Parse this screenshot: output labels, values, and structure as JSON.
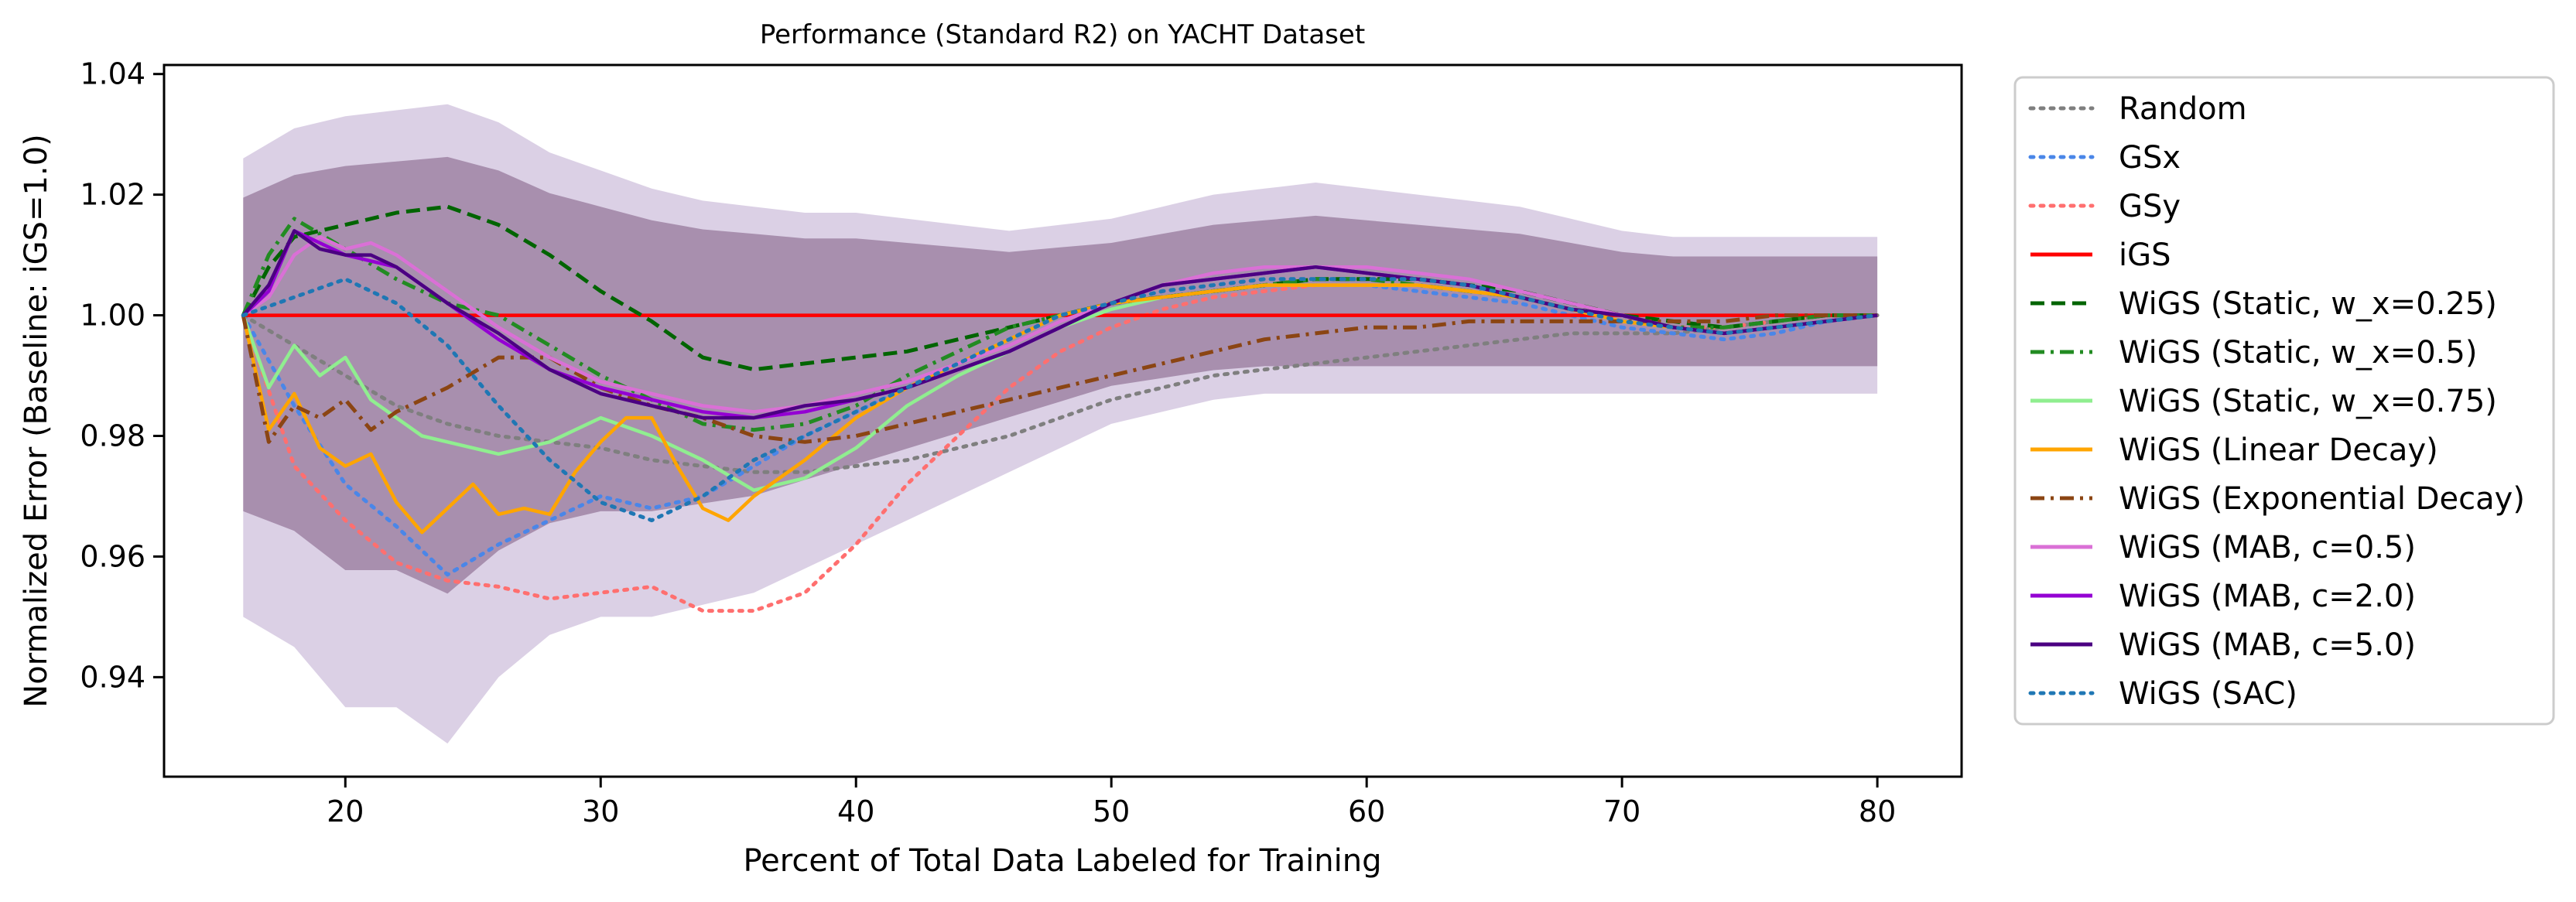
{
  "chart_data": {
    "type": "line",
    "title": "Performance (Standard R2) on YACHT Dataset",
    "xlabel": "Percent of Total Data Labeled for Training",
    "ylabel": "Normalized Error (Baseline: iGS=1.0)",
    "xlim": [
      12.9,
      83.3
    ],
    "ylim": [
      0.9235,
      1.0415
    ],
    "xticks": [
      20,
      30,
      40,
      50,
      60,
      70,
      80
    ],
    "xtick_labels": [
      "20",
      "30",
      "40",
      "50",
      "60",
      "70",
      "80"
    ],
    "yticks": [
      0.94,
      0.96,
      0.98,
      1.0,
      1.02,
      1.04
    ],
    "ytick_labels": [
      "0.94",
      "0.96",
      "0.98",
      "1.00",
      "1.02",
      "1.04"
    ],
    "grid": false,
    "legend_position": "outside-right-top",
    "band": {
      "note_color": "#b3a0c8",
      "x": [
        16,
        18,
        20,
        22,
        24,
        26,
        28,
        30,
        32,
        34,
        36,
        38,
        40,
        42,
        44,
        46,
        48,
        50,
        52,
        54,
        56,
        58,
        60,
        62,
        64,
        66,
        68,
        70,
        72,
        74,
        76,
        78,
        80
      ],
      "upper": [
        1.026,
        1.031,
        1.033,
        1.034,
        1.035,
        1.032,
        1.027,
        1.024,
        1.021,
        1.019,
        1.018,
        1.017,
        1.017,
        1.016,
        1.015,
        1.014,
        1.015,
        1.016,
        1.018,
        1.02,
        1.021,
        1.022,
        1.021,
        1.02,
        1.019,
        1.018,
        1.016,
        1.014,
        1.013,
        1.013,
        1.013,
        1.013,
        1.013
      ],
      "lower": [
        0.95,
        0.945,
        0.935,
        0.935,
        0.929,
        0.94,
        0.947,
        0.95,
        0.95,
        0.952,
        0.954,
        0.958,
        0.962,
        0.966,
        0.97,
        0.974,
        0.978,
        0.982,
        0.984,
        0.986,
        0.987,
        0.987,
        0.987,
        0.987,
        0.987,
        0.987,
        0.987,
        0.987,
        0.987,
        0.987,
        0.987,
        0.987,
        0.987
      ]
    },
    "series": [
      {
        "name": "Random",
        "color": "#7f7f7f",
        "style": "dotted",
        "x": [
          16,
          18,
          20,
          22,
          24,
          26,
          28,
          30,
          32,
          34,
          36,
          38,
          40,
          42,
          44,
          46,
          48,
          50,
          52,
          54,
          56,
          58,
          60,
          62,
          64,
          66,
          68,
          70,
          72,
          74,
          76,
          78,
          80
        ],
        "values": [
          1.0,
          0.995,
          0.99,
          0.985,
          0.982,
          0.98,
          0.979,
          0.978,
          0.976,
          0.975,
          0.974,
          0.974,
          0.975,
          0.976,
          0.978,
          0.98,
          0.983,
          0.986,
          0.988,
          0.99,
          0.991,
          0.992,
          0.993,
          0.994,
          0.995,
          0.996,
          0.997,
          0.997,
          0.997,
          0.998,
          0.999,
          1.0,
          1.0
        ]
      },
      {
        "name": "GSx",
        "color": "#4a86e8",
        "style": "dotted",
        "x": [
          16,
          18,
          20,
          22,
          24,
          26,
          28,
          30,
          32,
          34,
          36,
          38,
          40,
          42,
          44,
          46,
          48,
          50,
          52,
          54,
          56,
          58,
          60,
          62,
          64,
          66,
          68,
          70,
          72,
          74,
          76,
          78,
          80
        ],
        "values": [
          1.0,
          0.985,
          0.972,
          0.965,
          0.957,
          0.962,
          0.966,
          0.97,
          0.968,
          0.97,
          0.975,
          0.98,
          0.984,
          0.988,
          0.992,
          0.996,
          1.0,
          1.002,
          1.003,
          1.004,
          1.005,
          1.005,
          1.005,
          1.004,
          1.003,
          1.002,
          1.0,
          0.998,
          0.997,
          0.996,
          0.997,
          0.999,
          1.0
        ]
      },
      {
        "name": "GSy",
        "color": "#ff6f6f",
        "style": "dotted",
        "x": [
          16,
          18,
          20,
          22,
          24,
          26,
          28,
          30,
          32,
          34,
          36,
          38,
          40,
          42,
          44,
          46,
          48,
          50,
          52,
          54,
          56,
          58,
          60,
          62,
          64,
          66,
          68,
          70,
          72,
          74,
          76,
          78,
          80
        ],
        "values": [
          1.0,
          0.975,
          0.966,
          0.959,
          0.956,
          0.955,
          0.953,
          0.954,
          0.955,
          0.951,
          0.951,
          0.954,
          0.962,
          0.972,
          0.98,
          0.988,
          0.994,
          0.998,
          1.001,
          1.003,
          1.004,
          1.005,
          1.005,
          1.005,
          1.004,
          1.003,
          1.001,
          0.999,
          0.998,
          0.998,
          0.999,
          1.0,
          1.0
        ]
      },
      {
        "name": "iGS",
        "color": "#ff0000",
        "style": "solid",
        "x": [
          16,
          80
        ],
        "values": [
          1.0,
          1.0
        ]
      },
      {
        "name": "WiGS (Static, w_x=0.25)",
        "color": "#006400",
        "style": "dashed",
        "x": [
          16,
          17,
          18,
          20,
          22,
          24,
          26,
          28,
          30,
          32,
          34,
          36,
          38,
          40,
          42,
          44,
          46,
          48,
          50,
          52,
          54,
          56,
          58,
          60,
          62,
          64,
          66,
          68,
          70,
          72,
          74,
          76,
          78,
          80
        ],
        "values": [
          1.0,
          1.008,
          1.013,
          1.015,
          1.017,
          1.018,
          1.015,
          1.01,
          1.004,
          0.999,
          0.993,
          0.991,
          0.992,
          0.993,
          0.994,
          0.996,
          0.998,
          1.0,
          1.002,
          1.003,
          1.004,
          1.005,
          1.006,
          1.006,
          1.006,
          1.005,
          1.004,
          1.002,
          1.0,
          0.999,
          0.998,
          0.999,
          1.0,
          1.0
        ]
      },
      {
        "name": "WiGS (Static, w_x=0.5)",
        "color": "#228b22",
        "style": "dashdot",
        "x": [
          16,
          17,
          18,
          20,
          22,
          24,
          26,
          28,
          30,
          32,
          34,
          36,
          38,
          40,
          42,
          44,
          46,
          48,
          50,
          52,
          54,
          56,
          58,
          60,
          62,
          64,
          66,
          68,
          70,
          72,
          74,
          76,
          78,
          80
        ],
        "values": [
          1.0,
          1.01,
          1.016,
          1.011,
          1.006,
          1.002,
          1.0,
          0.995,
          0.99,
          0.986,
          0.982,
          0.981,
          0.982,
          0.985,
          0.99,
          0.994,
          0.998,
          1.0,
          1.002,
          1.003,
          1.004,
          1.005,
          1.006,
          1.006,
          1.005,
          1.004,
          1.003,
          1.001,
          1.0,
          0.998,
          0.998,
          0.999,
          1.0,
          1.0
        ]
      },
      {
        "name": "WiGS (Static, w_x=0.75)",
        "color": "#90ee90",
        "style": "solid",
        "x": [
          16,
          17,
          18,
          19,
          20,
          21,
          22,
          23,
          24,
          26,
          28,
          30,
          32,
          34,
          36,
          38,
          40,
          42,
          44,
          46,
          48,
          50,
          52,
          54,
          56,
          58,
          60,
          62,
          64,
          66,
          68,
          70,
          72,
          74,
          76,
          78,
          80
        ],
        "values": [
          1.0,
          0.988,
          0.995,
          0.99,
          0.993,
          0.986,
          0.983,
          0.98,
          0.979,
          0.977,
          0.979,
          0.983,
          0.98,
          0.976,
          0.971,
          0.973,
          0.978,
          0.985,
          0.99,
          0.994,
          0.998,
          1.001,
          1.003,
          1.004,
          1.005,
          1.005,
          1.005,
          1.005,
          1.004,
          1.003,
          1.001,
          0.999,
          0.998,
          0.997,
          0.998,
          0.999,
          1.0
        ]
      },
      {
        "name": "WiGS (Linear Decay)",
        "color": "#ffa500",
        "style": "solid",
        "x": [
          16,
          17,
          18,
          19,
          20,
          21,
          22,
          23,
          24,
          25,
          26,
          27,
          28,
          29,
          30,
          31,
          32,
          33,
          34,
          35,
          36,
          38,
          40,
          42,
          44,
          46,
          48,
          50,
          52,
          54,
          56,
          58,
          60,
          62,
          64,
          66,
          68,
          70,
          72,
          74,
          76,
          78,
          80
        ],
        "values": [
          1.0,
          0.981,
          0.987,
          0.978,
          0.975,
          0.977,
          0.969,
          0.964,
          0.968,
          0.972,
          0.967,
          0.968,
          0.967,
          0.974,
          0.979,
          0.983,
          0.983,
          0.975,
          0.968,
          0.966,
          0.97,
          0.976,
          0.983,
          0.988,
          0.992,
          0.996,
          1.0,
          1.002,
          1.003,
          1.004,
          1.005,
          1.005,
          1.005,
          1.005,
          1.004,
          1.003,
          1.001,
          0.999,
          0.998,
          0.997,
          0.998,
          0.999,
          1.0
        ]
      },
      {
        "name": "WiGS (Exponential Decay)",
        "color": "#8b4513",
        "style": "dashdot",
        "x": [
          16,
          17,
          18,
          19,
          20,
          21,
          22,
          24,
          26,
          28,
          30,
          32,
          34,
          36,
          38,
          40,
          42,
          44,
          46,
          48,
          50,
          52,
          54,
          56,
          58,
          60,
          62,
          64,
          66,
          68,
          70,
          72,
          74,
          76,
          78,
          80
        ],
        "values": [
          1.0,
          0.979,
          0.985,
          0.983,
          0.986,
          0.981,
          0.984,
          0.988,
          0.993,
          0.993,
          0.988,
          0.985,
          0.983,
          0.98,
          0.979,
          0.98,
          0.982,
          0.984,
          0.986,
          0.988,
          0.99,
          0.992,
          0.994,
          0.996,
          0.997,
          0.998,
          0.998,
          0.999,
          0.999,
          0.999,
          0.999,
          0.999,
          0.999,
          1.0,
          1.0,
          1.0
        ]
      },
      {
        "name": "WiGS (MAB, c=0.5)",
        "color": "#da70d6",
        "style": "solid",
        "x": [
          16,
          17,
          18,
          19,
          20,
          21,
          22,
          23,
          24,
          26,
          28,
          30,
          32,
          34,
          36,
          38,
          40,
          42,
          44,
          46,
          48,
          50,
          52,
          54,
          56,
          58,
          60,
          62,
          64,
          66,
          68,
          70,
          72,
          74,
          76,
          78,
          80
        ],
        "values": [
          1.0,
          1.003,
          1.01,
          1.013,
          1.011,
          1.012,
          1.01,
          1.007,
          1.004,
          0.998,
          0.993,
          0.989,
          0.987,
          0.985,
          0.984,
          0.985,
          0.987,
          0.989,
          0.992,
          0.995,
          0.999,
          1.002,
          1.005,
          1.007,
          1.008,
          1.008,
          1.008,
          1.007,
          1.006,
          1.004,
          1.002,
          1.0,
          0.998,
          0.997,
          0.998,
          0.999,
          1.0
        ]
      },
      {
        "name": "WiGS (MAB, c=2.0)",
        "color": "#9400d3",
        "style": "solid",
        "x": [
          16,
          17,
          18,
          19,
          20,
          21,
          22,
          23,
          24,
          26,
          28,
          30,
          32,
          34,
          36,
          38,
          40,
          42,
          44,
          46,
          48,
          50,
          52,
          54,
          56,
          58,
          60,
          62,
          64,
          66,
          68,
          70,
          72,
          74,
          76,
          78,
          80
        ],
        "values": [
          1.0,
          1.004,
          1.014,
          1.012,
          1.01,
          1.009,
          1.008,
          1.005,
          1.002,
          0.996,
          0.991,
          0.988,
          0.986,
          0.984,
          0.983,
          0.984,
          0.986,
          0.988,
          0.991,
          0.994,
          0.998,
          1.002,
          1.005,
          1.006,
          1.007,
          1.008,
          1.007,
          1.006,
          1.005,
          1.003,
          1.001,
          1.0,
          0.998,
          0.997,
          0.998,
          0.999,
          1.0
        ]
      },
      {
        "name": "WiGS (MAB, c=5.0)",
        "color": "#4b0082",
        "style": "solid",
        "x": [
          16,
          17,
          18,
          19,
          20,
          21,
          22,
          23,
          24,
          26,
          28,
          30,
          32,
          34,
          36,
          38,
          40,
          42,
          44,
          46,
          48,
          50,
          52,
          54,
          56,
          58,
          60,
          62,
          64,
          66,
          68,
          70,
          72,
          74,
          76,
          78,
          80
        ],
        "values": [
          1.0,
          1.005,
          1.014,
          1.011,
          1.01,
          1.01,
          1.008,
          1.005,
          1.002,
          0.997,
          0.991,
          0.987,
          0.985,
          0.983,
          0.983,
          0.985,
          0.986,
          0.988,
          0.991,
          0.994,
          0.998,
          1.002,
          1.005,
          1.006,
          1.007,
          1.008,
          1.007,
          1.006,
          1.005,
          1.003,
          1.001,
          1.0,
          0.998,
          0.997,
          0.998,
          0.999,
          1.0
        ]
      },
      {
        "name": "WiGS (SAC)",
        "color": "#1f77b4",
        "style": "dotted",
        "x": [
          16,
          18,
          20,
          22,
          24,
          26,
          28,
          30,
          32,
          34,
          36,
          38,
          40,
          42,
          44,
          46,
          48,
          50,
          52,
          54,
          56,
          58,
          60,
          62,
          64,
          66,
          68,
          70,
          72,
          74,
          76,
          78,
          80
        ],
        "values": [
          1.0,
          1.003,
          1.006,
          1.002,
          0.995,
          0.985,
          0.976,
          0.969,
          0.966,
          0.97,
          0.976,
          0.98,
          0.984,
          0.988,
          0.992,
          0.996,
          1.0,
          1.002,
          1.004,
          1.005,
          1.006,
          1.006,
          1.006,
          1.006,
          1.005,
          1.003,
          1.001,
          0.999,
          0.998,
          0.997,
          0.998,
          0.999,
          1.0
        ]
      }
    ]
  }
}
